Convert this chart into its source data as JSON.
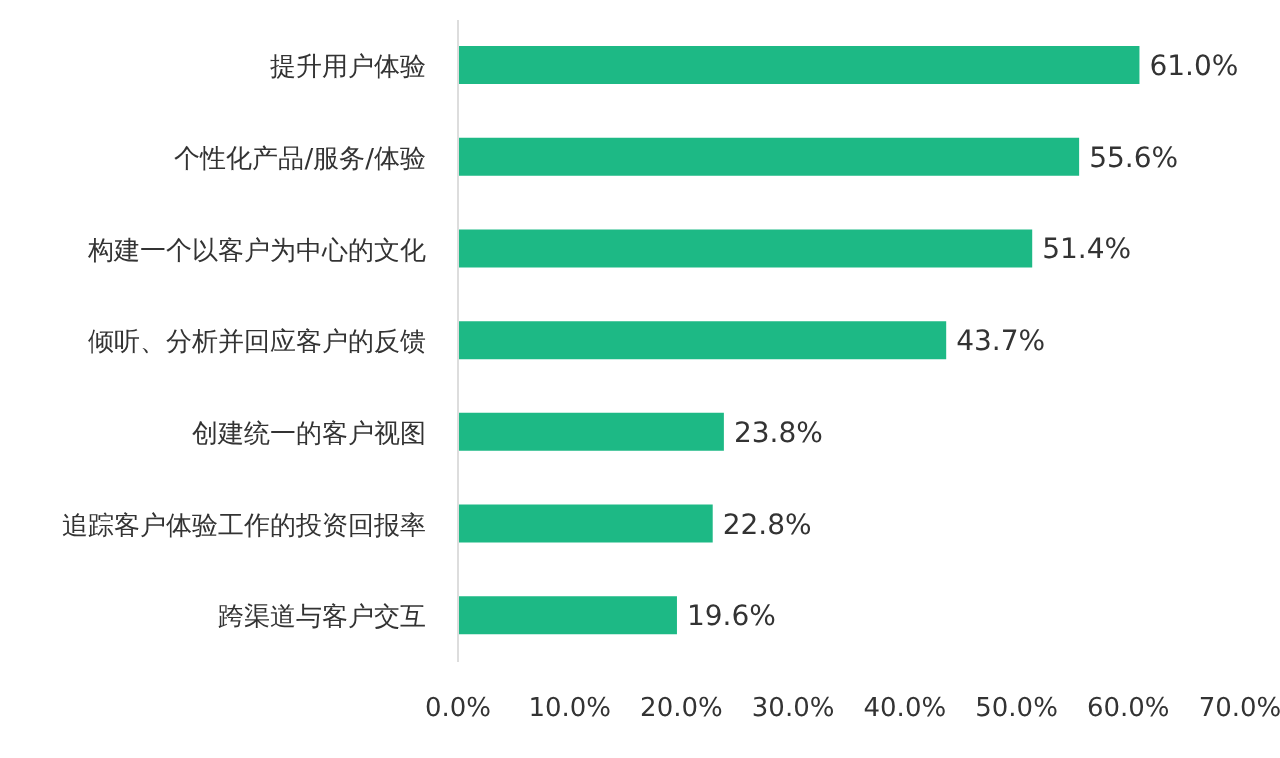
{
  "chart_data": {
    "type": "bar",
    "orientation": "horizontal",
    "categories": [
      "提升用户体验",
      "个性化产品/服务/体验",
      "构建一个以客户为中心的文化",
      "倾听、分析并回应客户的反馈",
      "创建统一的客户视图",
      "追踪客户体验工作的投资回报率",
      "跨渠道与客户交互"
    ],
    "values": [
      61.0,
      55.6,
      51.4,
      43.7,
      23.8,
      22.8,
      19.6
    ],
    "value_labels": [
      "61.0%",
      "55.6%",
      "51.4%",
      "43.7%",
      "23.8%",
      "22.8%",
      "19.6%"
    ],
    "color": "#1db985",
    "xlim": [
      0,
      70
    ],
    "xticks": [
      {
        "value": 0,
        "label": "0.0%"
      },
      {
        "value": 10,
        "label": "10.0%"
      },
      {
        "value": 20,
        "label": "20.0%"
      },
      {
        "value": 30,
        "label": "30.0%"
      },
      {
        "value": 40,
        "label": "40.0%"
      },
      {
        "value": 50,
        "label": "50.0%"
      },
      {
        "value": 60,
        "label": "60.0%"
      },
      {
        "value": 70,
        "label": "70.0%"
      }
    ],
    "grid": false,
    "legend": false
  }
}
